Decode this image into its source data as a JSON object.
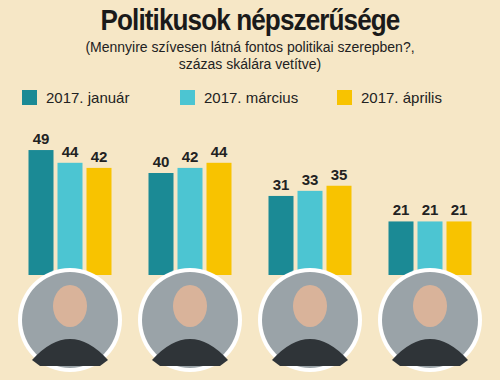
{
  "chart_data": {
    "type": "bar",
    "title": "Politikusok népszerűsége",
    "subtitle": "(Mennyire szívesen látná fontos politikai szerepben?, százas skálára vetítve)",
    "categories": [
      null,
      null,
      null,
      null
    ],
    "series": [
      {
        "name": "2017. január",
        "color": "#1b8a95",
        "values": [
          49,
          40,
          31,
          21
        ]
      },
      {
        "name": "2017. március",
        "color": "#4cc5d2",
        "values": [
          44,
          42,
          33,
          21
        ]
      },
      {
        "name": "2017. április",
        "color": "#f8c300",
        "values": [
          42,
          44,
          35,
          21
        ]
      }
    ],
    "ylim": [
      0,
      60
    ],
    "data_labels": true,
    "tick_labels": false,
    "legend": "top",
    "grid": false
  }
}
